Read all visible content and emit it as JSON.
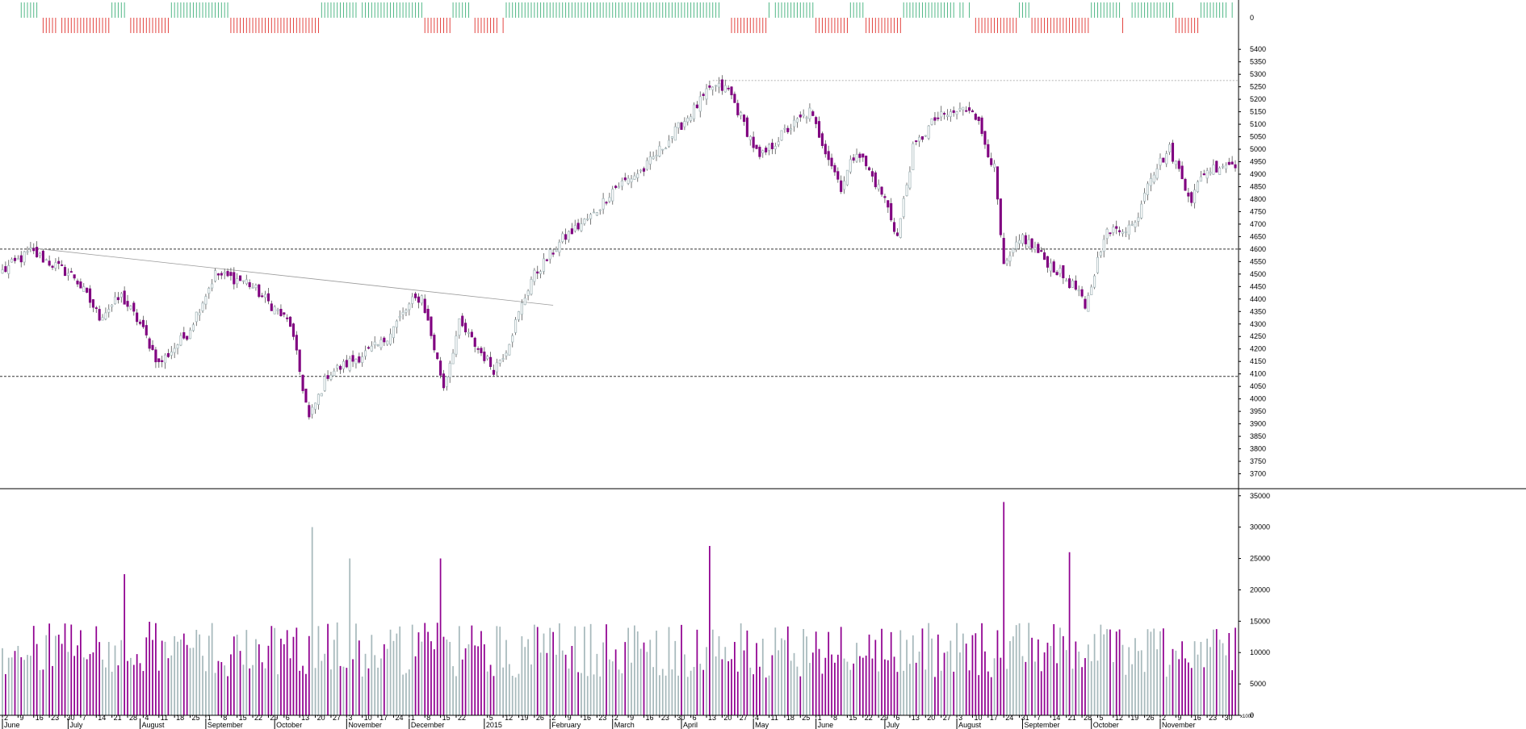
{
  "chart_data": [
    {
      "type": "bar",
      "panel": "up-down indicator",
      "ytick_labels": [
        "0"
      ],
      "colors": {
        "up": "#3fb07a",
        "down": "#e0302c"
      }
    },
    {
      "type": "candlestick",
      "panel": "price",
      "ylim": [
        3650,
        5420
      ],
      "ytick_labels": [
        "5400",
        "5350",
        "5300",
        "5250",
        "5200",
        "5150",
        "5100",
        "5050",
        "5000",
        "4950",
        "4900",
        "4850",
        "4800",
        "4750",
        "4700",
        "4650",
        "4600",
        "4550",
        "4500",
        "4450",
        "4400",
        "4350",
        "4300",
        "4250",
        "4200",
        "4150",
        "4100",
        "4050",
        "4000",
        "3950",
        "3900",
        "3850",
        "3800",
        "3750",
        "3700"
      ],
      "grid": false,
      "colors": {
        "up": "#a7b9bc",
        "down": "#800080",
        "wick": "#555555"
      },
      "reference_lines": [
        {
          "kind": "horizontal-dashed",
          "value": 4600
        },
        {
          "kind": "horizontal-dashed",
          "value": 4090
        },
        {
          "kind": "horizontal-dotted",
          "value": 5275
        },
        {
          "kind": "trendline",
          "from": [
            "2014-06-13",
            4605
          ],
          "to": [
            "2015-02-03",
            4375
          ]
        }
      ],
      "anchors": [
        [
          "2014-06-02",
          4510
        ],
        [
          "2014-06-13",
          4590
        ],
        [
          "2014-07-03",
          4490
        ],
        [
          "2014-07-15",
          4330
        ],
        [
          "2014-07-24",
          4410
        ],
        [
          "2014-08-01",
          4300
        ],
        [
          "2014-08-11",
          4140
        ],
        [
          "2014-08-22",
          4260
        ],
        [
          "2014-09-04",
          4500
        ],
        [
          "2014-09-18",
          4470
        ],
        [
          "2014-09-26",
          4400
        ],
        [
          "2014-10-08",
          4300
        ],
        [
          "2014-10-16",
          3920
        ],
        [
          "2014-10-24",
          4100
        ],
        [
          "2014-11-03",
          4140
        ],
        [
          "2014-11-18",
          4220
        ],
        [
          "2014-12-02",
          4390
        ],
        [
          "2014-12-05",
          4410
        ],
        [
          "2014-12-16",
          4050
        ],
        [
          "2014-12-23",
          4300
        ],
        [
          "2015-01-07",
          4120
        ],
        [
          "2015-01-13",
          4200
        ],
        [
          "2015-01-23",
          4480
        ],
        [
          "2015-02-06",
          4640
        ],
        [
          "2015-02-20",
          4740
        ],
        [
          "2015-03-02",
          4840
        ],
        [
          "2015-03-16",
          4920
        ],
        [
          "2015-04-01",
          5100
        ],
        [
          "2015-04-15",
          5250
        ],
        [
          "2015-04-22",
          5240
        ],
        [
          "2015-05-06",
          4960
        ],
        [
          "2015-05-18",
          5070
        ],
        [
          "2015-05-28",
          5150
        ],
        [
          "2015-06-11",
          4850
        ],
        [
          "2015-06-18",
          5000
        ],
        [
          "2015-07-01",
          4800
        ],
        [
          "2015-07-07",
          4650
        ],
        [
          "2015-07-14",
          5000
        ],
        [
          "2015-07-23",
          5120
        ],
        [
          "2015-08-03",
          5150
        ],
        [
          "2015-08-10",
          5170
        ],
        [
          "2015-08-19",
          4920
        ],
        [
          "2015-08-24",
          4520
        ],
        [
          "2015-09-01",
          4650
        ],
        [
          "2015-09-10",
          4560
        ],
        [
          "2015-09-25",
          4430
        ],
        [
          "2015-09-29",
          4350
        ],
        [
          "2015-10-07",
          4660
        ],
        [
          "2015-10-21",
          4700
        ],
        [
          "2015-10-27",
          4880
        ],
        [
          "2015-11-05",
          5000
        ],
        [
          "2015-11-16",
          4800
        ],
        [
          "2015-11-20",
          4910
        ],
        [
          "2015-11-30",
          4940
        ]
      ]
    },
    {
      "type": "bar",
      "panel": "volume",
      "ylim": [
        0,
        36000
      ],
      "ytick_labels": [
        "35000",
        "30000",
        "25000",
        "20000",
        "15000",
        "10000",
        "5000",
        "0"
      ],
      "unit_label": "x1000",
      "colors": {
        "up": "#a7b9bc",
        "down": "#900090"
      },
      "volume_spikes": [
        [
          "2014-07-25",
          22500
        ],
        [
          "2014-10-17",
          30000
        ],
        [
          "2014-11-04",
          25000
        ],
        [
          "2014-12-15",
          25000
        ],
        [
          "2015-04-14",
          27000
        ],
        [
          "2015-08-24",
          34000
        ],
        [
          "2015-09-22",
          26000
        ]
      ]
    }
  ],
  "x_axis": {
    "start": "2014-06-02",
    "end": "2015-12-04",
    "day_labels": [
      {
        "d": "2014-06-02",
        "t": "2"
      },
      {
        "d": "2014-06-09",
        "t": "9"
      },
      {
        "d": "2014-06-16",
        "t": "16"
      },
      {
        "d": "2014-06-23",
        "t": "23"
      },
      {
        "d": "2014-06-30",
        "t": "30"
      },
      {
        "d": "2014-07-07",
        "t": "7"
      },
      {
        "d": "2014-07-14",
        "t": "14"
      },
      {
        "d": "2014-07-21",
        "t": "21"
      },
      {
        "d": "2014-07-28",
        "t": "28"
      },
      {
        "d": "2014-08-04",
        "t": "4"
      },
      {
        "d": "2014-08-11",
        "t": "11"
      },
      {
        "d": "2014-08-18",
        "t": "18"
      },
      {
        "d": "2014-08-25",
        "t": "25"
      },
      {
        "d": "2014-09-01",
        "t": "1"
      },
      {
        "d": "2014-09-08",
        "t": "8"
      },
      {
        "d": "2014-09-15",
        "t": "15"
      },
      {
        "d": "2014-09-22",
        "t": "22"
      },
      {
        "d": "2014-09-29",
        "t": "29"
      },
      {
        "d": "2014-10-06",
        "t": "6"
      },
      {
        "d": "2014-10-13",
        "t": "13"
      },
      {
        "d": "2014-10-20",
        "t": "20"
      },
      {
        "d": "2014-10-27",
        "t": "27"
      },
      {
        "d": "2014-11-03",
        "t": "3"
      },
      {
        "d": "2014-11-10",
        "t": "10"
      },
      {
        "d": "2014-11-17",
        "t": "17"
      },
      {
        "d": "2014-11-24",
        "t": "24"
      },
      {
        "d": "2014-12-01",
        "t": "1"
      },
      {
        "d": "2014-12-08",
        "t": "8"
      },
      {
        "d": "2014-12-15",
        "t": "15"
      },
      {
        "d": "2014-12-22",
        "t": "22"
      },
      {
        "d": "2015-01-05",
        "t": "5"
      },
      {
        "d": "2015-01-12",
        "t": "12"
      },
      {
        "d": "2015-01-19",
        "t": "19"
      },
      {
        "d": "2015-01-26",
        "t": "26"
      },
      {
        "d": "2015-02-02",
        "t": "2"
      },
      {
        "d": "2015-02-09",
        "t": "9"
      },
      {
        "d": "2015-02-16",
        "t": "16"
      },
      {
        "d": "2015-02-23",
        "t": "23"
      },
      {
        "d": "2015-03-02",
        "t": "2"
      },
      {
        "d": "2015-03-09",
        "t": "9"
      },
      {
        "d": "2015-03-16",
        "t": "16"
      },
      {
        "d": "2015-03-23",
        "t": "23"
      },
      {
        "d": "2015-03-30",
        "t": "30"
      },
      {
        "d": "2015-04-06",
        "t": "6"
      },
      {
        "d": "2015-04-13",
        "t": "13"
      },
      {
        "d": "2015-04-20",
        "t": "20"
      },
      {
        "d": "2015-04-27",
        "t": "27"
      },
      {
        "d": "2015-05-04",
        "t": "4"
      },
      {
        "d": "2015-05-11",
        "t": "11"
      },
      {
        "d": "2015-05-18",
        "t": "18"
      },
      {
        "d": "2015-05-25",
        "t": "25"
      },
      {
        "d": "2015-06-01",
        "t": "1"
      },
      {
        "d": "2015-06-08",
        "t": "8"
      },
      {
        "d": "2015-06-15",
        "t": "15"
      },
      {
        "d": "2015-06-22",
        "t": "22"
      },
      {
        "d": "2015-06-29",
        "t": "29"
      },
      {
        "d": "2015-07-06",
        "t": "6"
      },
      {
        "d": "2015-07-13",
        "t": "13"
      },
      {
        "d": "2015-07-20",
        "t": "20"
      },
      {
        "d": "2015-07-27",
        "t": "27"
      },
      {
        "d": "2015-08-03",
        "t": "3"
      },
      {
        "d": "2015-08-10",
        "t": "10"
      },
      {
        "d": "2015-08-17",
        "t": "17"
      },
      {
        "d": "2015-08-24",
        "t": "24"
      },
      {
        "d": "2015-08-31",
        "t": "31"
      },
      {
        "d": "2015-09-07",
        "t": "7"
      },
      {
        "d": "2015-09-14",
        "t": "14"
      },
      {
        "d": "2015-09-21",
        "t": "21"
      },
      {
        "d": "2015-09-28",
        "t": "28"
      },
      {
        "d": "2015-10-05",
        "t": "5"
      },
      {
        "d": "2015-10-12",
        "t": "12"
      },
      {
        "d": "2015-10-19",
        "t": "19"
      },
      {
        "d": "2015-10-26",
        "t": "26"
      },
      {
        "d": "2015-11-02",
        "t": "2"
      },
      {
        "d": "2015-11-09",
        "t": "9"
      },
      {
        "d": "2015-11-16",
        "t": "16"
      },
      {
        "d": "2015-11-23",
        "t": "23"
      },
      {
        "d": "2015-11-30",
        "t": "30"
      }
    ],
    "month_labels": [
      {
        "d": "2014-06-02",
        "t": "June"
      },
      {
        "d": "2014-07-01",
        "t": "July"
      },
      {
        "d": "2014-08-01",
        "t": "August"
      },
      {
        "d": "2014-09-01",
        "t": "September"
      },
      {
        "d": "2014-10-01",
        "t": "October"
      },
      {
        "d": "2014-11-03",
        "t": "November"
      },
      {
        "d": "2014-12-01",
        "t": "December"
      },
      {
        "d": "2015-01-02",
        "t": "2015"
      },
      {
        "d": "2015-02-02",
        "t": "February"
      },
      {
        "d": "2015-03-02",
        "t": "March"
      },
      {
        "d": "2015-04-01",
        "t": "April"
      },
      {
        "d": "2015-05-04",
        "t": "May"
      },
      {
        "d": "2015-06-01",
        "t": "June"
      },
      {
        "d": "2015-07-01",
        "t": "July"
      },
      {
        "d": "2015-08-03",
        "t": "August"
      },
      {
        "d": "2015-09-01",
        "t": "September"
      },
      {
        "d": "2015-10-01",
        "t": "October"
      },
      {
        "d": "2015-11-02",
        "t": "November"
      }
    ]
  }
}
